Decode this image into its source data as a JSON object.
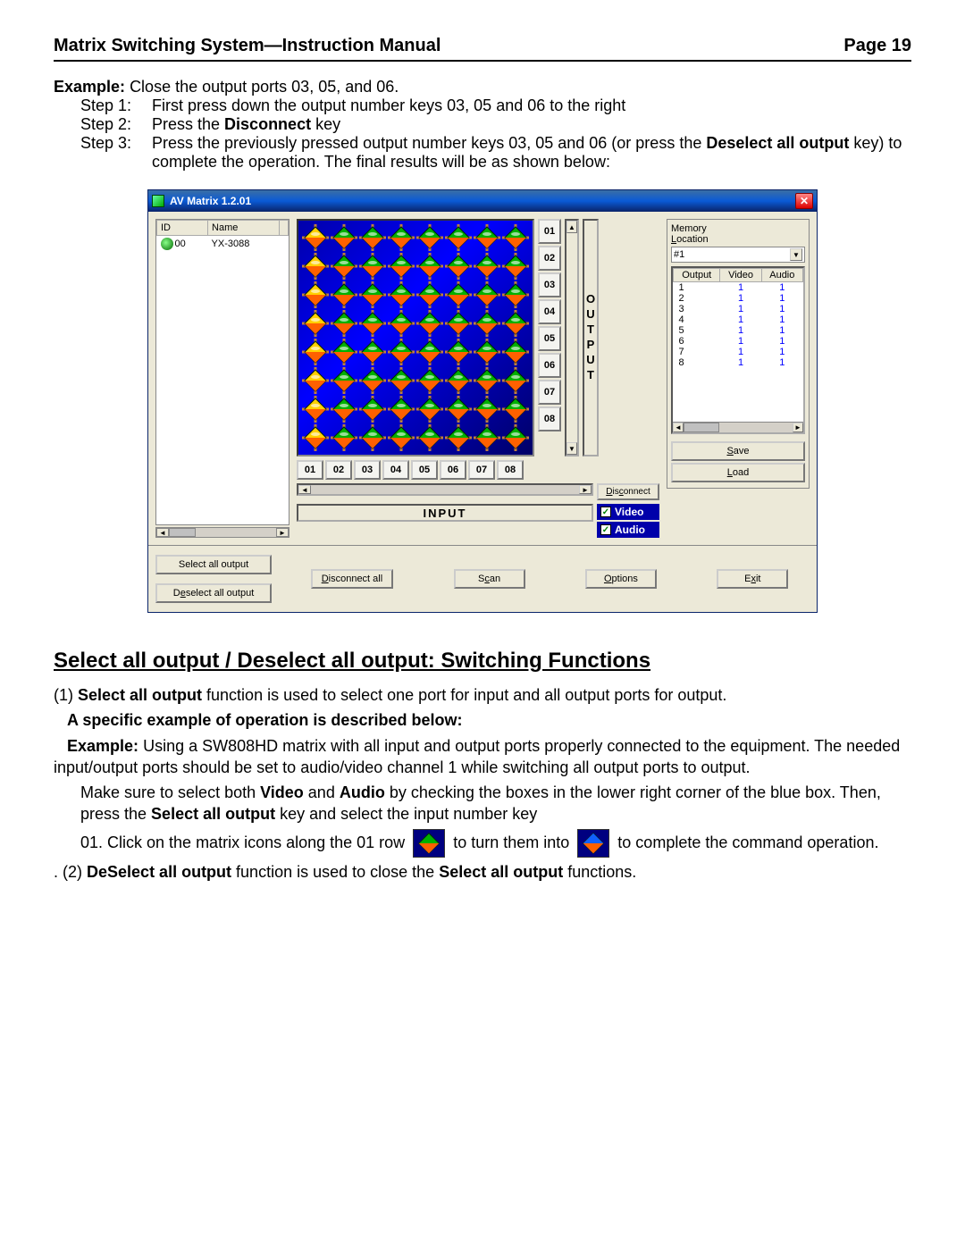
{
  "header": {
    "title": "Matrix Switching System—Instruction Manual",
    "page": "Page 19"
  },
  "example1": {
    "label": "Example:",
    "text": "Close the output ports 03, 05, and 06.",
    "step1_label": "Step 1:",
    "step1_text": "First press down the output number keys 03, 05 and 06 to the right",
    "step2_label": "Step 2:",
    "step2_pre": "Press the ",
    "step2_bold": "Disconnect",
    "step2_post": " key",
    "step3_label": "Step 3:",
    "step3_text": "Press the previously pressed output number keys 03, 05 and 06 (or press the ",
    "step3_bold": "Deselect all output",
    "step3_post": " key) to complete the operation. The final results will be as shown below:"
  },
  "app": {
    "title": "AV Matrix 1.2.01",
    "device_list": {
      "col_id": "ID",
      "col_name": "Name",
      "row_id": "00",
      "row_name": "YX-3088"
    },
    "output_buttons": [
      "01",
      "02",
      "03",
      "04",
      "05",
      "06",
      "07",
      "08"
    ],
    "input_buttons": [
      "01",
      "02",
      "03",
      "04",
      "05",
      "06",
      "07",
      "08"
    ],
    "output_label": "OUTPUT",
    "input_label": "INPUT",
    "disconnect": "Disconnect",
    "video": "Video",
    "audio": "Audio",
    "memory_legend": "Memory",
    "location_label": "Location",
    "location_value": "#1",
    "mem_cols": {
      "output": "Output",
      "video": "Video",
      "audio": "Audio"
    },
    "mem_rows": [
      {
        "o": "1",
        "v": "1",
        "a": "1"
      },
      {
        "o": "2",
        "v": "1",
        "a": "1"
      },
      {
        "o": "3",
        "v": "1",
        "a": "1"
      },
      {
        "o": "4",
        "v": "1",
        "a": "1"
      },
      {
        "o": "5",
        "v": "1",
        "a": "1"
      },
      {
        "o": "6",
        "v": "1",
        "a": "1"
      },
      {
        "o": "7",
        "v": "1",
        "a": "1"
      },
      {
        "o": "8",
        "v": "1",
        "a": "1"
      }
    ],
    "save": "Save",
    "load": "Load",
    "select_all": "Select all output",
    "deselect_all": "Deselect all output",
    "disconnect_all": "Disconnect all",
    "scan": "Scan",
    "options": "Options",
    "exit": "Exit",
    "matrix": {
      "rows": 8,
      "cols": 8,
      "bg_color": "#0000cc",
      "wire_color": "#c08040",
      "diamond_top": "#00b000",
      "diamond_bottom": "#ff6000",
      "first_col_selected": true,
      "selected_top": "#ffd000"
    }
  },
  "section2": {
    "heading": "Select all output / Deselect all output: Switching Functions",
    "p1_pre": "(1) ",
    "p1_bold": "Select all output",
    "p1_post": " function is used to select one port for input and all output ports for output.",
    "p2_bold": "A specific example of operation is described below:",
    "p3_label": "Example:",
    "p3_text": "Using a SW808HD matrix with all input and output ports properly connected to the equipment. The needed input/output ports should be set to audio/video channel 1 while switching all output ports to output.",
    "p4_pre": "Make sure to select both ",
    "p4_b1": "Video",
    "p4_mid1": " and ",
    "p4_b2": "Audio",
    "p4_mid2": " by checking the boxes in the lower right corner of the blue box. Then, press the ",
    "p4_b3": "Select all output",
    "p4_post": " key and select the input number key",
    "p5_pre": "01. Click on the matrix icons along the 01 row ",
    "p5_mid": " to turn them into ",
    "p5_post": " to complete the command operation.",
    "p6_pre": ". (2) ",
    "p6_b1": "DeSelect all output",
    "p6_mid": " function is used to close the ",
    "p6_b2": "Select all output",
    "p6_post": " functions."
  }
}
